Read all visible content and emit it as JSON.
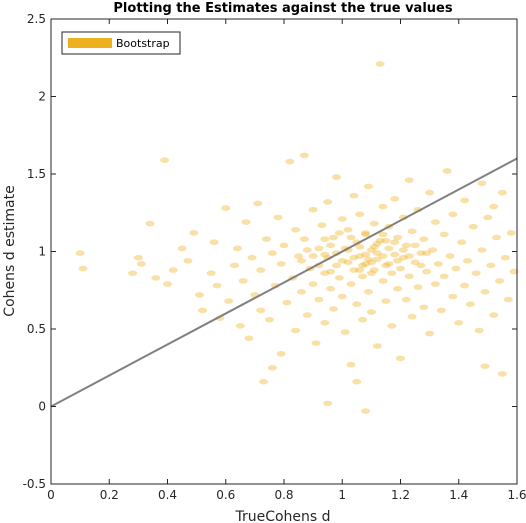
{
  "chart_data": {
    "type": "scatter",
    "title": "Plotting the Estimates against the true values",
    "xlabel": "TrueCohens d",
    "ylabel": "Cohens d estimate",
    "xlim": [
      0,
      1.6
    ],
    "ylim": [
      -0.5,
      2.5
    ],
    "xticks": [
      "0",
      "0.2",
      "0.4",
      "0.6",
      "0.8",
      "1",
      "1.2",
      "1.4",
      "1.6"
    ],
    "yticks": [
      "-0.5",
      "0",
      "0.5",
      "1",
      "1.5",
      "2",
      "2.5"
    ],
    "grid": false,
    "legend": {
      "position": "top-left",
      "entries": [
        "Bootstrap"
      ]
    },
    "colors": {
      "bootstrap": "#EDB120",
      "reference_line": "#808080"
    },
    "reference_line": {
      "x": [
        0,
        1.6
      ],
      "y": [
        0,
        1.6
      ]
    },
    "series": [
      {
        "name": "Bootstrap",
        "points": [
          [
            0.1,
            0.99
          ],
          [
            0.11,
            0.89
          ],
          [
            0.28,
            0.86
          ],
          [
            0.31,
            0.92
          ],
          [
            0.34,
            1.18
          ],
          [
            0.39,
            1.59
          ],
          [
            0.3,
            0.96
          ],
          [
            0.36,
            0.83
          ],
          [
            0.4,
            0.79
          ],
          [
            0.42,
            0.88
          ],
          [
            0.45,
            1.02
          ],
          [
            0.47,
            0.94
          ],
          [
            0.49,
            1.12
          ],
          [
            0.51,
            0.72
          ],
          [
            0.52,
            0.62
          ],
          [
            0.55,
            0.86
          ],
          [
            0.56,
            1.06
          ],
          [
            0.57,
            0.78
          ],
          [
            0.58,
            0.57
          ],
          [
            0.6,
            1.28
          ],
          [
            0.61,
            0.68
          ],
          [
            0.63,
            0.91
          ],
          [
            0.64,
            1.02
          ],
          [
            0.65,
            0.52
          ],
          [
            0.66,
            0.81
          ],
          [
            0.67,
            1.19
          ],
          [
            0.68,
            0.44
          ],
          [
            0.69,
            0.96
          ],
          [
            0.7,
            0.72
          ],
          [
            0.71,
            1.31
          ],
          [
            0.72,
            0.62
          ],
          [
            0.72,
            0.88
          ],
          [
            0.73,
            0.16
          ],
          [
            0.74,
            1.08
          ],
          [
            0.75,
            0.56
          ],
          [
            0.76,
            0.99
          ],
          [
            0.77,
            0.78
          ],
          [
            0.78,
            1.22
          ],
          [
            0.79,
            0.34
          ],
          [
            0.79,
            0.92
          ],
          [
            0.8,
            1.04
          ],
          [
            0.81,
            0.67
          ],
          [
            0.82,
            1.58
          ],
          [
            0.83,
            0.83
          ],
          [
            0.84,
            1.14
          ],
          [
            0.84,
            0.49
          ],
          [
            0.85,
            0.97
          ],
          [
            0.86,
            0.74
          ],
          [
            0.87,
            1.62
          ],
          [
            0.87,
            1.08
          ],
          [
            0.88,
            0.59
          ],
          [
            0.89,
            0.89
          ],
          [
            0.9,
            1.27
          ],
          [
            0.9,
            0.79
          ],
          [
            0.91,
            0.41
          ],
          [
            0.92,
            1.02
          ],
          [
            0.92,
            0.69
          ],
          [
            0.93,
            1.17
          ],
          [
            0.94,
            0.86
          ],
          [
            0.94,
            0.54
          ],
          [
            0.95,
            1.32
          ],
          [
            0.95,
            0.96
          ],
          [
            0.96,
            0.76
          ],
          [
            0.97,
            1.09
          ],
          [
            0.97,
            0.63
          ],
          [
            0.98,
            1.48
          ],
          [
            0.98,
            0.91
          ],
          [
            0.99,
            0.83
          ],
          [
            1.0,
            1.21
          ],
          [
            1.0,
            0.71
          ],
          [
            1.01,
            1.02
          ],
          [
            1.01,
            0.48
          ],
          [
            1.02,
            0.93
          ],
          [
            1.02,
            1.14
          ],
          [
            1.03,
            0.79
          ],
          [
            1.03,
            0.27
          ],
          [
            1.04,
            1.36
          ],
          [
            1.04,
            0.88
          ],
          [
            1.05,
            1.06
          ],
          [
            1.05,
            0.66
          ],
          [
            1.06,
            0.97
          ],
          [
            1.06,
            1.24
          ],
          [
            1.07,
            0.84
          ],
          [
            1.07,
            0.56
          ],
          [
            1.08,
            1.11
          ],
          [
            1.08,
            0.92
          ],
          [
            1.09,
            0.74
          ],
          [
            1.09,
            1.42
          ],
          [
            1.1,
            1.01
          ],
          [
            1.1,
            0.61
          ],
          [
            1.11,
            0.88
          ],
          [
            1.11,
            1.18
          ],
          [
            1.12,
            0.95
          ],
          [
            1.12,
            0.39
          ],
          [
            1.13,
            2.21
          ],
          [
            1.13,
            1.07
          ],
          [
            1.14,
            0.81
          ],
          [
            1.14,
            1.29
          ],
          [
            1.15,
            0.91
          ],
          [
            1.15,
            0.68
          ],
          [
            1.16,
            1.02
          ],
          [
            1.16,
            1.16
          ],
          [
            1.17,
            0.86
          ],
          [
            1.17,
            0.52
          ],
          [
            1.18,
            0.98
          ],
          [
            1.18,
            1.34
          ],
          [
            1.19,
            0.76
          ],
          [
            1.19,
            1.09
          ],
          [
            1.2,
            0.89
          ],
          [
            1.2,
            0.31
          ],
          [
            1.21,
            1.22
          ],
          [
            1.21,
            0.96
          ],
          [
            1.22,
            0.69
          ],
          [
            1.22,
            1.04
          ],
          [
            1.23,
            0.84
          ],
          [
            1.23,
            1.46
          ],
          [
            1.24,
            0.58
          ],
          [
            1.24,
            1.13
          ],
          [
            1.25,
            0.93
          ],
          [
            1.26,
            0.77
          ],
          [
            1.26,
            1.27
          ],
          [
            1.27,
            0.99
          ],
          [
            1.28,
            0.64
          ],
          [
            1.28,
            1.08
          ],
          [
            1.29,
            0.87
          ],
          [
            1.3,
            1.38
          ],
          [
            1.3,
            0.47
          ],
          [
            1.31,
            1.01
          ],
          [
            1.32,
            0.79
          ],
          [
            1.32,
            1.19
          ],
          [
            1.33,
            0.92
          ],
          [
            1.34,
            0.62
          ],
          [
            1.35,
            1.11
          ],
          [
            1.35,
            0.84
          ],
          [
            1.36,
            1.52
          ],
          [
            1.37,
            0.97
          ],
          [
            1.38,
            0.71
          ],
          [
            1.38,
            1.24
          ],
          [
            1.39,
            0.89
          ],
          [
            1.4,
            0.54
          ],
          [
            1.41,
            1.06
          ],
          [
            1.42,
            0.78
          ],
          [
            1.42,
            1.33
          ],
          [
            1.43,
            0.94
          ],
          [
            1.44,
            0.66
          ],
          [
            1.45,
            1.16
          ],
          [
            1.46,
            0.86
          ],
          [
            1.47,
            0.49
          ],
          [
            1.48,
            1.01
          ],
          [
            1.49,
            0.74
          ],
          [
            1.5,
            1.22
          ],
          [
            1.51,
            0.91
          ],
          [
            1.52,
            0.59
          ],
          [
            1.53,
            1.09
          ],
          [
            1.54,
            0.81
          ],
          [
            1.55,
            1.38
          ],
          [
            1.56,
            0.96
          ],
          [
            1.57,
            0.69
          ],
          [
            1.58,
            1.12
          ],
          [
            1.59,
            0.87
          ],
          [
            1.48,
            1.44
          ],
          [
            1.52,
            1.29
          ],
          [
            0.96,
            1.04
          ],
          [
            0.98,
            0.99
          ],
          [
            1.0,
            0.94
          ],
          [
            1.02,
            1.01
          ],
          [
            1.04,
            0.96
          ],
          [
            1.06,
            1.03
          ],
          [
            1.08,
            0.98
          ],
          [
            1.1,
            0.93
          ],
          [
            1.12,
            1.05
          ],
          [
            1.14,
            0.97
          ],
          [
            1.16,
            0.92
          ],
          [
            1.18,
            1.06
          ],
          [
            1.06,
            0.88
          ],
          [
            1.08,
            1.12
          ],
          [
            1.1,
            0.86
          ],
          [
            1.12,
            0.99
          ],
          [
            1.14,
            1.11
          ],
          [
            1.09,
            0.95
          ],
          [
            0.94,
            1.08
          ],
          [
            0.99,
            1.12
          ],
          [
            1.03,
            1.09
          ],
          [
            1.07,
            0.91
          ],
          [
            1.11,
            1.03
          ],
          [
            1.15,
            1.07
          ],
          [
            1.19,
            0.94
          ],
          [
            1.21,
            1.01
          ],
          [
            1.23,
            0.97
          ],
          [
            1.25,
            1.04
          ],
          [
            1.27,
            0.91
          ],
          [
            1.29,
            0.99
          ],
          [
            0.86,
            0.94
          ],
          [
            0.88,
            1.01
          ],
          [
            0.9,
            0.97
          ],
          [
            0.92,
            0.91
          ],
          [
            0.94,
            0.98
          ],
          [
            0.96,
            0.87
          ],
          [
            1.05,
            0.16
          ],
          [
            0.95,
            0.02
          ],
          [
            1.08,
            -0.03
          ],
          [
            1.55,
            0.21
          ],
          [
            1.49,
            0.26
          ],
          [
            0.76,
            0.25
          ]
        ]
      }
    ]
  }
}
